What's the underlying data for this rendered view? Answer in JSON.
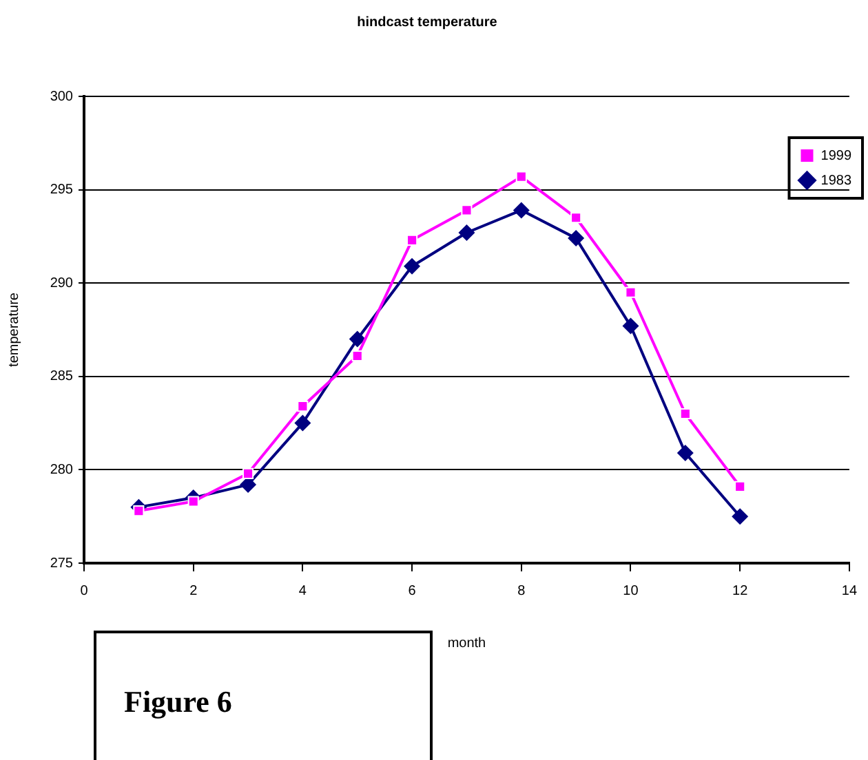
{
  "chart_data": {
    "type": "line",
    "title": "hindcast temperature",
    "xlabel": "month",
    "ylabel": "temperature",
    "x": [
      1,
      2,
      3,
      4,
      5,
      6,
      7,
      8,
      9,
      10,
      11,
      12
    ],
    "series": [
      {
        "name": "1983",
        "color": "#000080",
        "marker": "diamond",
        "values": [
          278.0,
          278.5,
          279.2,
          282.5,
          287.0,
          290.9,
          292.7,
          293.9,
          292.4,
          287.7,
          280.9,
          277.5
        ]
      },
      {
        "name": "1999",
        "color": "#ff00ff",
        "marker": "square",
        "values": [
          277.8,
          278.3,
          279.8,
          283.4,
          286.1,
          292.3,
          293.9,
          295.7,
          293.5,
          289.5,
          283.0,
          279.1
        ]
      }
    ],
    "xlim": [
      0,
      14
    ],
    "xticks": [
      0,
      2,
      4,
      6,
      8,
      10,
      12,
      14
    ],
    "ylim": [
      275,
      300
    ],
    "yticks": [
      275,
      280,
      285,
      290,
      295,
      300
    ],
    "grid": "y",
    "legend": "right",
    "line_style": "solid",
    "annotations": [
      "Figure 6"
    ]
  }
}
